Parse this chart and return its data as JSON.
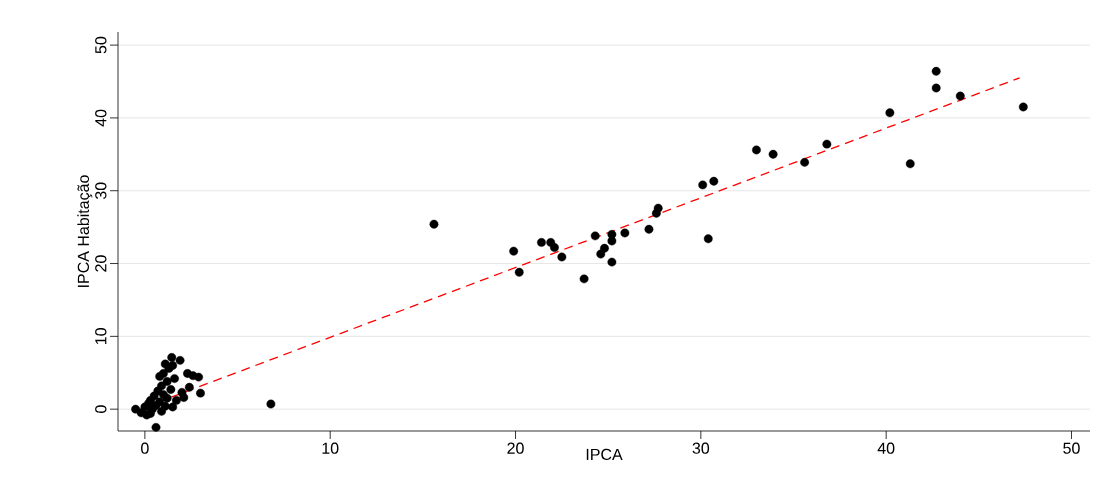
{
  "chart_data": {
    "type": "scatter",
    "xlabel": "IPCA",
    "ylabel": "IPCA Habitação",
    "xlim": [
      -1.45,
      51
    ],
    "ylim": [
      -3,
      51.8
    ],
    "xticks": [
      0,
      10,
      20,
      30,
      40,
      50
    ],
    "yticks": [
      0,
      10,
      20,
      30,
      40,
      50
    ],
    "grid": "y",
    "series": [
      {
        "color": "#000000",
        "marker": "circle",
        "x": [
          -0.5,
          -0.2,
          0.0,
          0.1,
          0.2,
          0.3,
          0.4,
          0.5,
          0.6,
          0.6,
          0.7,
          0.8,
          0.9,
          0.9,
          1.0,
          1.0,
          1.1,
          1.2,
          1.2,
          1.3,
          1.4,
          1.45,
          1.5,
          1.6,
          1.7,
          1.9,
          2.0,
          2.1,
          2.3,
          2.4,
          2.6,
          2.9,
          3.0,
          0.3,
          1.5,
          0.8,
          1.1,
          6.8,
          15.6,
          19.9,
          20.2,
          21.4,
          21.9,
          22.1,
          22.5,
          23.7,
          24.3,
          24.6,
          24.8,
          25.2,
          25.2,
          25.2,
          25.9,
          27.2,
          27.6,
          27.7,
          30.1,
          30.4,
          30.7,
          33.0,
          33.9,
          35.6,
          36.8,
          40.2,
          41.3,
          42.7,
          42.7,
          44.0,
          47.4
        ],
        "values": [
          0.0,
          -0.5,
          0.3,
          -0.8,
          0.8,
          1.2,
          0.0,
          1.8,
          -2.5,
          0.5,
          2.5,
          1.0,
          -0.3,
          3.2,
          4.9,
          2.0,
          0.4,
          3.8,
          1.5,
          5.6,
          2.7,
          7.1,
          0.3,
          4.2,
          1.2,
          6.7,
          2.3,
          1.6,
          4.9,
          3.0,
          4.6,
          4.4,
          2.2,
          -0.6,
          6.0,
          4.5,
          6.2,
          0.7,
          25.4,
          21.7,
          18.8,
          22.9,
          22.9,
          22.2,
          20.9,
          17.9,
          23.8,
          21.3,
          22.1,
          24.0,
          23.1,
          20.2,
          24.2,
          24.7,
          26.9,
          27.6,
          30.8,
          23.4,
          31.3,
          35.6,
          35.0,
          33.9,
          36.4,
          40.7,
          33.7,
          44.1,
          46.4,
          43.0,
          41.5
        ]
      },
      {
        "type": "line",
        "color": "#ff0000",
        "line_style": "dashed",
        "x": [
          -0.4,
          47.2
        ],
        "values": [
          -0.1,
          45.5
        ]
      }
    ]
  }
}
